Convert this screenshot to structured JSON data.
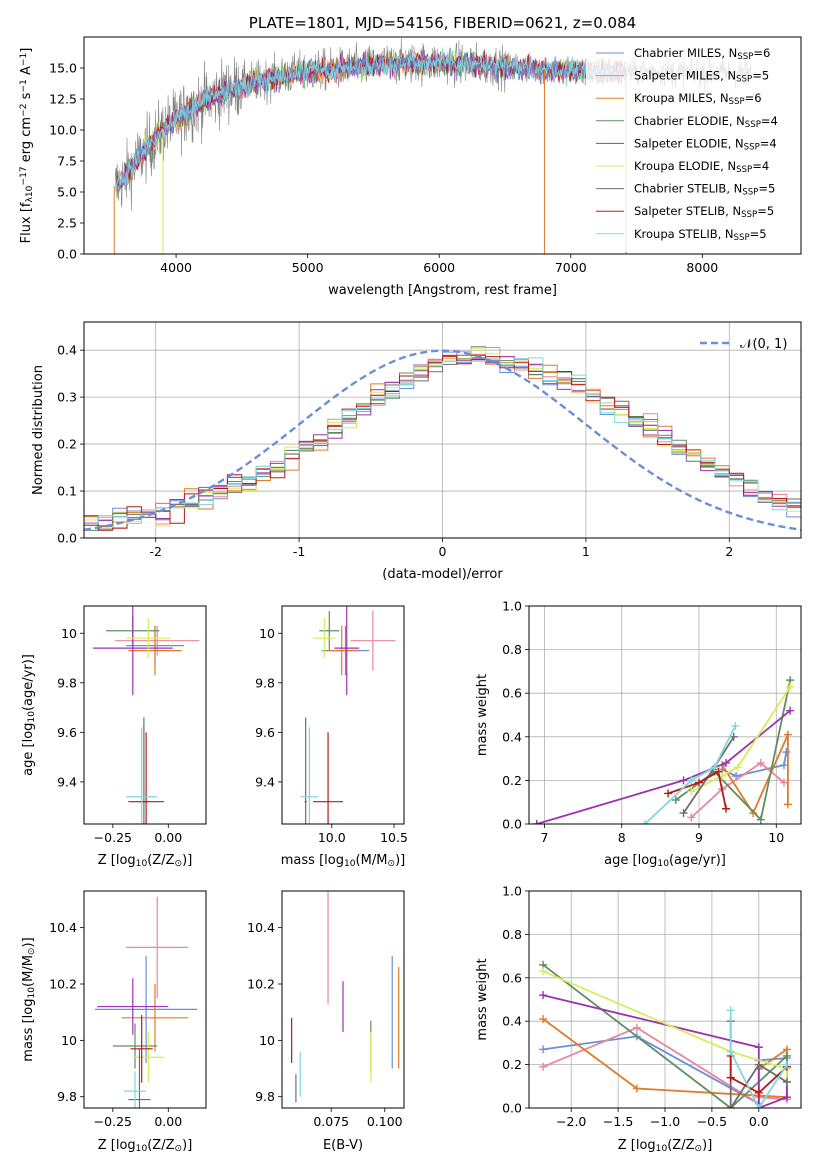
{
  "colors": {
    "cm": "#6a8fd8",
    "sm": "#e8879c",
    "km": "#e07b2a",
    "ce": "#5f8f5f",
    "se": "#9b33ad",
    "ke": "#d8ec5a",
    "cs": "#6e6e6e",
    "ss": "#b51a1a",
    "ks": "#7ed8df",
    "model": "#75d6dd",
    "data": "#808080",
    "normal": "#6a8fd8"
  },
  "chart_data": [
    {
      "id": "spectrum",
      "type": "line",
      "title": "PLATE=1801, MJD=54156, FIBERID=0621, z=0.084",
      "xlabel": "wavelength [Angstrom, rest frame]",
      "ylabel_parts": [
        "Flux [f",
        "λ",
        "10",
        "−17",
        " erg cm",
        "−2",
        " s",
        "−1",
        " A",
        "−1",
        "]"
      ],
      "xlim": [
        3300,
        8750
      ],
      "ylim": [
        0,
        17.5
      ],
      "xticks": [
        4000,
        5000,
        6000,
        7000,
        8000
      ],
      "yticks": [
        0.0,
        2.5,
        5.0,
        7.5,
        10.0,
        12.5,
        15.0
      ],
      "continuum": {
        "x": [
          3530,
          3600,
          3700,
          3800,
          3900,
          4000,
          4100,
          4200,
          4300,
          4400,
          4500,
          4600,
          4800,
          5000,
          5200,
          5400,
          5600,
          5800,
          6000,
          6200,
          6400,
          6600,
          6800,
          7000,
          7200,
          7400,
          7600,
          7800,
          8000,
          8200,
          8400
        ],
        "y": [
          5.5,
          6.0,
          7.5,
          8.8,
          10.0,
          10.8,
          11.6,
          12.3,
          12.8,
          13.2,
          13.6,
          13.9,
          14.3,
          14.7,
          14.9,
          15.1,
          15.3,
          15.4,
          15.4,
          15.3,
          15.2,
          15.0,
          14.9,
          14.8,
          14.7,
          14.7,
          14.7,
          14.6,
          14.6,
          14.6,
          14.6
        ]
      },
      "series": [
        {
          "name": "Chabrier MILES, N",
          "sub": "SSP",
          "tail": "=6",
          "c": "cm"
        },
        {
          "name": "Salpeter MILES, N",
          "sub": "SSP",
          "tail": "=5",
          "c": "sm"
        },
        {
          "name": "Kroupa MILES, N",
          "sub": "SSP",
          "tail": "=6",
          "c": "km"
        },
        {
          "name": "Chabrier ELODIE, N",
          "sub": "SSP",
          "tail": "=4",
          "c": "ce"
        },
        {
          "name": "Salpeter ELODIE, N",
          "sub": "SSP",
          "tail": "=4",
          "c": "se"
        },
        {
          "name": "Kroupa ELODIE, N",
          "sub": "SSP",
          "tail": "=4",
          "c": "ke"
        },
        {
          "name": "Chabrier STELIB, N",
          "sub": "SSP",
          "tail": "=5",
          "c": "cs"
        },
        {
          "name": "Salpeter STELIB, N",
          "sub": "SSP",
          "tail": "=5",
          "c": "ss"
        },
        {
          "name": "Kroupa STELIB, N",
          "sub": "SSP",
          "tail": "=5",
          "c": "ks"
        }
      ],
      "legend": "upper right"
    },
    {
      "id": "hist",
      "type": "bar",
      "xlabel": "(data-model)/error",
      "ylabel": "Normed distribution",
      "xlim": [
        -2.5,
        2.5
      ],
      "ylim": [
        0,
        0.46
      ],
      "xticks": [
        -2,
        -1,
        0,
        1,
        2
      ],
      "yticks": [
        0.0,
        0.1,
        0.2,
        0.3,
        0.4
      ],
      "grid": true,
      "bin_edges_start": -2.5,
      "bin_width": 0.1,
      "mean_distribution": [
        0.03,
        0.035,
        0.04,
        0.045,
        0.05,
        0.055,
        0.065,
        0.075,
        0.085,
        0.1,
        0.11,
        0.12,
        0.135,
        0.15,
        0.17,
        0.19,
        0.21,
        0.23,
        0.255,
        0.28,
        0.3,
        0.32,
        0.34,
        0.355,
        0.37,
        0.38,
        0.385,
        0.39,
        0.385,
        0.375,
        0.365,
        0.355,
        0.345,
        0.335,
        0.32,
        0.305,
        0.29,
        0.27,
        0.25,
        0.235,
        0.215,
        0.195,
        0.175,
        0.16,
        0.14,
        0.12,
        0.105,
        0.09,
        0.08,
        0.07
      ],
      "legend_label": "𝒩(0, 1)",
      "legend": "upper right"
    },
    {
      "id": "age_vs_Z",
      "type": "scatter",
      "xlabel_parts": [
        "Z [log",
        "10",
        "(Z/Z",
        "⊙",
        ")]"
      ],
      "ylabel_parts": [
        "age  [log",
        "10",
        "(age/yr)]"
      ],
      "xlim": [
        -0.38,
        0.17
      ],
      "ylim": [
        9.23,
        10.11
      ],
      "xticks": [
        -0.25,
        0.0
      ],
      "xticklabels": [
        "−0.25",
        "0.00"
      ],
      "yticks": [
        9.4,
        9.6,
        9.8,
        10.0
      ],
      "points": [
        {
          "c": "cm",
          "x": -0.06,
          "y": 9.95,
          "xe": 0.13,
          "ye": 0.08
        },
        {
          "c": "sm",
          "x": -0.05,
          "y": 9.97,
          "xe": 0.19,
          "ye": 0.06
        },
        {
          "c": "km",
          "x": -0.06,
          "y": 9.93,
          "xe": 0.12,
          "ye": 0.1
        },
        {
          "c": "ce",
          "x": -0.16,
          "y": 10.01,
          "xe": 0.12,
          "ye": 0.06
        },
        {
          "c": "se",
          "x": -0.16,
          "y": 9.94,
          "xe": 0.18,
          "ye": 0.19
        },
        {
          "c": "ke",
          "x": -0.09,
          "y": 9.98,
          "xe": 0.1,
          "ye": 0.08
        },
        {
          "c": "cs",
          "x": -0.11,
          "y": 9.32,
          "xe": 0.02,
          "ye": 0.34
        },
        {
          "c": "ss",
          "x": -0.1,
          "y": 9.32,
          "xe": 0.08,
          "ye": 0.28
        },
        {
          "c": "ks",
          "x": -0.12,
          "y": 9.34,
          "xe": 0.07,
          "ye": 0.28
        }
      ]
    },
    {
      "id": "age_vs_mass",
      "type": "scatter",
      "xlabel_parts": [
        "mass [log",
        "10",
        "(M/M",
        "⊙",
        ")]"
      ],
      "xlim": [
        9.6,
        10.58
      ],
      "ylim": [
        9.23,
        10.11
      ],
      "xticks": [
        10.0,
        10.5
      ],
      "xticklabels": [
        "10.0",
        "10.5"
      ],
      "yticks": [
        9.4,
        9.6,
        9.8,
        10.0
      ],
      "points": [
        {
          "c": "cm",
          "x": 10.11,
          "y": 9.93,
          "xe": 0.19,
          "ye": 0.1
        },
        {
          "c": "sm",
          "x": 10.33,
          "y": 9.97,
          "xe": 0.18,
          "ye": 0.12
        },
        {
          "c": "km",
          "x": 10.08,
          "y": 9.93,
          "xe": 0.12,
          "ye": 0.1
        },
        {
          "c": "ce",
          "x": 9.98,
          "y": 10.01,
          "xe": 0.08,
          "ye": 0.08
        },
        {
          "c": "se",
          "x": 10.12,
          "y": 9.94,
          "xe": 0.1,
          "ye": 0.19
        },
        {
          "c": "ke",
          "x": 9.94,
          "y": 9.98,
          "xe": 0.09,
          "ye": 0.08
        },
        {
          "c": "cs",
          "x": 9.79,
          "y": 9.32,
          "xe": 0.01,
          "ye": 0.34
        },
        {
          "c": "ss",
          "x": 9.97,
          "y": 9.32,
          "xe": 0.12,
          "ye": 0.28
        },
        {
          "c": "ks",
          "x": 9.82,
          "y": 9.34,
          "xe": 0.07,
          "ye": 0.28
        }
      ]
    },
    {
      "id": "weight_vs_age",
      "type": "line",
      "xlabel_parts": [
        "age  [log",
        "10",
        "(age/yr)]"
      ],
      "ylabel": "mass weight",
      "xlim": [
        6.8,
        10.32
      ],
      "ylim": [
        0,
        1
      ],
      "xticks": [
        7,
        8,
        9,
        10
      ],
      "yticks": [
        0.0,
        0.2,
        0.4,
        0.6,
        0.8,
        1.0
      ],
      "grid": true,
      "series": [
        {
          "c": "cm",
          "x": [
            9.3,
            9.48,
            10.1,
            10.13
          ],
          "y": [
            0.25,
            0.22,
            0.27,
            0.33
          ]
        },
        {
          "c": "sm",
          "x": [
            8.9,
            9.3,
            9.8,
            10.1
          ],
          "y": [
            0.03,
            0.16,
            0.28,
            0.19
          ]
        },
        {
          "c": "km",
          "x": [
            9.3,
            9.7,
            10.15,
            10.15
          ],
          "y": [
            0.27,
            0.05,
            0.41,
            0.09
          ]
        },
        {
          "c": "ce",
          "x": [
            8.7,
            9.2,
            9.8,
            10.18
          ],
          "y": [
            0.11,
            0.24,
            0.02,
            0.66
          ]
        },
        {
          "c": "se",
          "x": [
            6.9,
            8.8,
            9.35,
            10.18
          ],
          "y": [
            0.0,
            0.2,
            0.28,
            0.52
          ]
        },
        {
          "c": "ke",
          "x": [
            8.9,
            9.3,
            9.5,
            10.18
          ],
          "y": [
            0.15,
            0.22,
            0.26,
            0.63
          ]
        },
        {
          "c": "cs",
          "x": [
            8.8,
            9.18,
            9.45
          ],
          "y": [
            0.05,
            0.25,
            0.4
          ]
        },
        {
          "c": "ss",
          "x": [
            8.6,
            9.0,
            9.25,
            9.35
          ],
          "y": [
            0.14,
            0.19,
            0.24,
            0.07
          ]
        },
        {
          "c": "ks",
          "x": [
            8.3,
            8.9,
            9.2,
            9.47
          ],
          "y": [
            0.0,
            0.2,
            0.26,
            0.45
          ]
        }
      ]
    },
    {
      "id": "mass_vs_Z",
      "type": "scatter",
      "xlabel_parts": [
        "Z [log",
        "10",
        "(Z/Z",
        "⊙",
        ")]"
      ],
      "ylabel_parts": [
        "mass [log",
        "10",
        "(M/M",
        "⊙",
        ")]"
      ],
      "xlim": [
        -0.38,
        0.17
      ],
      "ylim": [
        9.76,
        10.53
      ],
      "xticks": [
        -0.25,
        0.0
      ],
      "xticklabels": [
        "−0.25",
        "0.00"
      ],
      "yticks": [
        9.8,
        10.0,
        10.2,
        10.4
      ],
      "points": [
        {
          "c": "cm",
          "x": -0.1,
          "y": 10.11,
          "xe": 0.23,
          "ye": 0.19
        },
        {
          "c": "sm",
          "x": -0.05,
          "y": 10.33,
          "xe": 0.14,
          "ye": 0.18
        },
        {
          "c": "km",
          "x": -0.06,
          "y": 10.08,
          "xe": 0.15,
          "ye": 0.12
        },
        {
          "c": "ce",
          "x": -0.15,
          "y": 9.98,
          "xe": 0.1,
          "ye": 0.08
        },
        {
          "c": "se",
          "x": -0.16,
          "y": 10.12,
          "xe": 0.16,
          "ye": 0.1
        },
        {
          "c": "ke",
          "x": -0.09,
          "y": 9.94,
          "xe": 0.07,
          "ye": 0.09
        },
        {
          "c": "cs",
          "x": -0.13,
          "y": 9.79,
          "xe": 0.05,
          "ye": 0.18
        },
        {
          "c": "ss",
          "x": -0.12,
          "y": 9.97,
          "xe": 0.05,
          "ye": 0.12
        },
        {
          "c": "ks",
          "x": -0.15,
          "y": 9.82,
          "xe": 0.05,
          "ye": 0.07
        }
      ]
    },
    {
      "id": "mass_vs_ebv",
      "type": "scatter",
      "xlabel": "E(B-V)",
      "xlim": [
        0.052,
        0.109
      ],
      "ylim": [
        9.76,
        10.53
      ],
      "xticks": [
        0.075,
        0.1
      ],
      "xticklabels": [
        "0.075",
        "0.100"
      ],
      "yticks": [
        9.8,
        10.0,
        10.2,
        10.4
      ],
      "points": [
        {
          "c": "cm",
          "x": 0.1035,
          "y": 10.1,
          "ye": 0.2
        },
        {
          "c": "sm",
          "x": 0.0735,
          "y": 10.33,
          "ye": 0.2
        },
        {
          "c": "km",
          "x": 0.1065,
          "y": 10.08,
          "ye": 0.18
        },
        {
          "c": "ce",
          "x": 0.0935,
          "y": 9.98,
          "ye": 0.09
        },
        {
          "c": "se",
          "x": 0.0805,
          "y": 10.12,
          "ye": 0.09
        },
        {
          "c": "ke",
          "x": 0.0935,
          "y": 9.94,
          "ye": 0.09
        },
        {
          "c": "cs",
          "x": 0.0585,
          "y": 9.83,
          "ye": 0.05
        },
        {
          "c": "ss",
          "x": 0.0565,
          "y": 10.0,
          "ye": 0.08
        },
        {
          "c": "ks",
          "x": 0.0605,
          "y": 9.88,
          "ye": 0.08
        }
      ]
    },
    {
      "id": "weight_vs_Z",
      "type": "line",
      "xlabel_parts": [
        "Z [log",
        "10",
        "(Z/Z",
        "⊙",
        ")]"
      ],
      "ylabel": "mass weight",
      "xlim": [
        -2.45,
        0.45
      ],
      "ylim": [
        0,
        1
      ],
      "xticks": [
        -2.0,
        -1.5,
        -1.0,
        -0.5,
        0.0
      ],
      "xticklabels": [
        "−2.0",
        "−1.5",
        "−1.0",
        "−0.5",
        "0.0"
      ],
      "yticks": [
        0.0,
        0.2,
        0.4,
        0.6,
        0.8,
        1.0
      ],
      "grid": true,
      "series": [
        {
          "c": "cm",
          "x": [
            -2.3,
            -1.3,
            0.0,
            0.0,
            0.3
          ],
          "y": [
            0.27,
            0.33,
            0.02,
            0.22,
            0.23
          ]
        },
        {
          "c": "sm",
          "x": [
            -2.3,
            -1.3,
            0.0,
            0.0,
            0.3
          ],
          "y": [
            0.19,
            0.37,
            0.02,
            0.05,
            0.04
          ]
        },
        {
          "c": "km",
          "x": [
            -2.3,
            -1.3,
            0.3,
            0.3,
            0.0
          ],
          "y": [
            0.41,
            0.09,
            0.05,
            0.27,
            0.18
          ]
        },
        {
          "c": "ce",
          "x": [
            -2.3,
            -0.3,
            0.3,
            0.3
          ],
          "y": [
            0.66,
            0.0,
            0.24,
            0.12
          ]
        },
        {
          "c": "se",
          "x": [
            -2.3,
            0.0,
            0.0,
            0.3,
            0.3
          ],
          "y": [
            0.52,
            0.28,
            0.0,
            0.05,
            0.19
          ]
        },
        {
          "c": "ke",
          "x": [
            -2.3,
            -0.3,
            0.3,
            0.3
          ],
          "y": [
            0.63,
            0.26,
            0.18,
            0.12
          ]
        },
        {
          "c": "cs",
          "x": [
            -0.3,
            -0.3,
            0.0,
            0.3
          ],
          "y": [
            0.4,
            0.0,
            0.2,
            0.12
          ]
        },
        {
          "c": "ss",
          "x": [
            -0.3,
            -0.3,
            0.0,
            0.3
          ],
          "y": [
            0.24,
            0.14,
            0.07,
            0.19
          ]
        },
        {
          "c": "ks",
          "x": [
            -0.3,
            -0.3,
            0.0,
            0.3
          ],
          "y": [
            0.45,
            0.26,
            0.0,
            0.2
          ]
        }
      ]
    }
  ]
}
